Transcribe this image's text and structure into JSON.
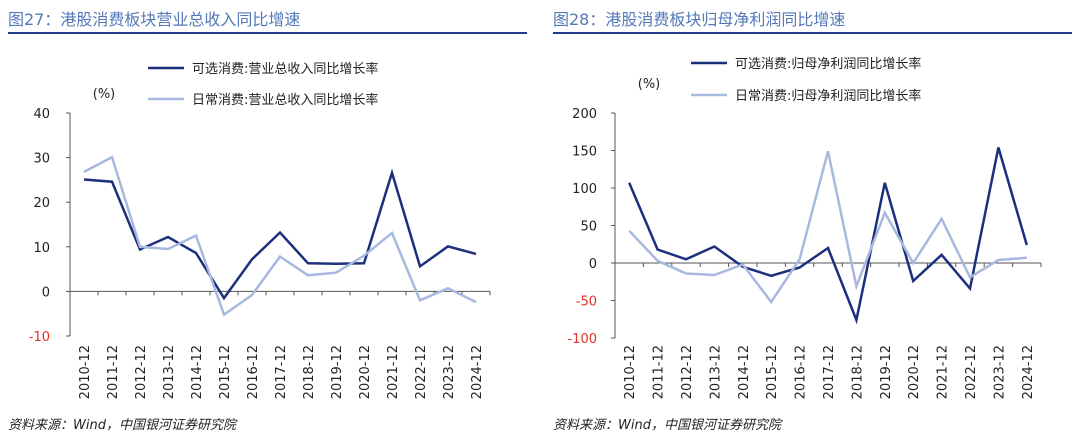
{
  "source_note": "资料来源：Wind，中国银河证券研究院",
  "colors": {
    "dark": "#1c2f7c",
    "light": "#a8b9df",
    "negative_tick": "#e0322c",
    "tick": "#222222",
    "axis": "#555555"
  },
  "chart_data": [
    {
      "type": "line",
      "figure_title": "图27：港股消费板块营业总收入同比增速",
      "ylabel": "(%)",
      "xlabel": "",
      "ylim": [
        -10,
        40
      ],
      "yticks": [
        -10,
        0,
        10,
        20,
        30,
        40
      ],
      "grid": false,
      "legend_position": "top-right",
      "categories": [
        "2010-12",
        "2011-12",
        "2012-12",
        "2013-12",
        "2014-12",
        "2015-12",
        "2016-12",
        "2017-12",
        "2018-12",
        "2019-12",
        "2020-12",
        "2021-12",
        "2022-12",
        "2023-12",
        "2024-12"
      ],
      "series": [
        {
          "name": "可选消费:营业总收入同比增长率",
          "color": "#1c2f7c",
          "values": [
            25.1,
            24.6,
            9.4,
            12.2,
            8.6,
            -1.5,
            7.2,
            13.2,
            6.3,
            6.2,
            6.3,
            26.6,
            5.6,
            10.1,
            8.4
          ]
        },
        {
          "name": "日常消费:营业总收入同比增长率",
          "color": "#a8b9df",
          "values": [
            26.8,
            30.1,
            10.0,
            9.5,
            12.5,
            -5.2,
            -0.8,
            7.8,
            3.6,
            4.2,
            8.0,
            13.1,
            -2.0,
            0.7,
            -2.4
          ]
        }
      ]
    },
    {
      "type": "line",
      "figure_title": "图28：港股消费板块归母净利润同比增速",
      "ylabel": "(%)",
      "xlabel": "",
      "ylim": [
        -100,
        200
      ],
      "yticks": [
        -100,
        -50,
        0,
        50,
        100,
        150,
        200
      ],
      "grid": false,
      "legend_position": "top-right",
      "categories": [
        "2010-12",
        "2011-12",
        "2012-12",
        "2013-12",
        "2014-12",
        "2015-12",
        "2016-12",
        "2017-12",
        "2018-12",
        "2019-12",
        "2020-12",
        "2021-12",
        "2022-12",
        "2023-12",
        "2024-12"
      ],
      "series": [
        {
          "name": "可选消费:归母净利润同比增长率",
          "color": "#1c2f7c",
          "values": [
            107,
            18,
            5,
            22,
            -5,
            -17,
            -6,
            20,
            -76,
            107,
            -24,
            11,
            -34,
            154,
            24
          ]
        },
        {
          "name": "日常消费:归母净利润同比增长率",
          "color": "#a8b9df",
          "values": [
            43,
            3,
            -14,
            -16,
            -2,
            -52,
            5,
            149,
            -31,
            67,
            0,
            59,
            -19,
            4,
            7
          ]
        }
      ]
    }
  ]
}
